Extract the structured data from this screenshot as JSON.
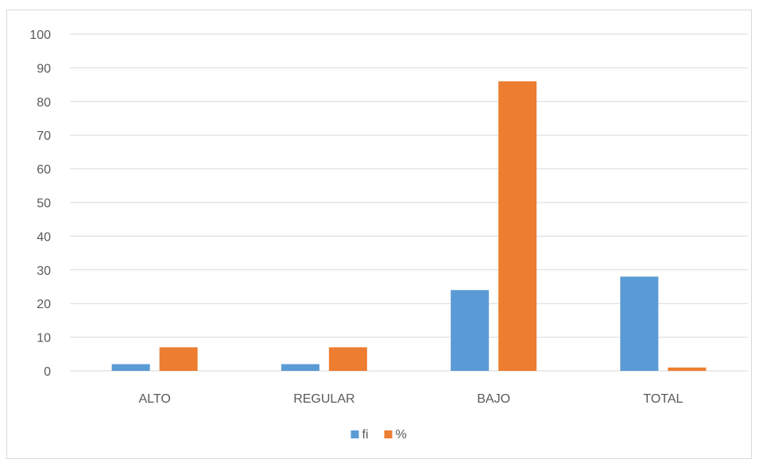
{
  "chart_data": {
    "type": "bar",
    "categories": [
      "ALTO",
      "REGULAR",
      "BAJO",
      "TOTAL"
    ],
    "series": [
      {
        "name": "fi",
        "values": [
          2,
          2,
          24,
          28
        ],
        "color": "#5b9bd5"
      },
      {
        "name": "%",
        "values": [
          7,
          7,
          86,
          1
        ],
        "color": "#ed7d31"
      }
    ],
    "ylim": [
      0,
      100
    ],
    "yticks": [
      0,
      10,
      20,
      30,
      40,
      50,
      60,
      70,
      80,
      90,
      100
    ],
    "grid": true,
    "legend_position": "bottom",
    "gridline_color": "#d9d9d9",
    "text_color": "#595959"
  }
}
